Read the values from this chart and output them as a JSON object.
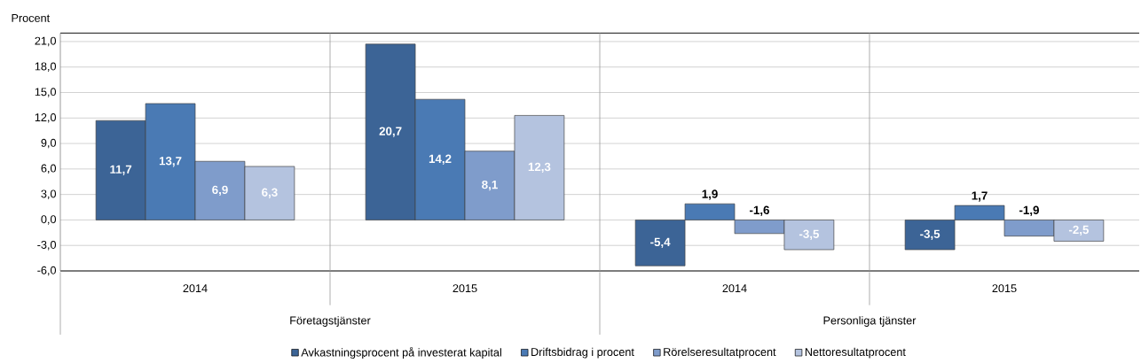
{
  "chart_data": {
    "type": "bar",
    "ylabel": "Procent",
    "categories": [
      "2014",
      "2015",
      "2014",
      "2015"
    ],
    "series": [
      {
        "name": "Avkastningsprocent på investerat kapital",
        "color": "#3c6496",
        "values": [
          11.7,
          20.7,
          -5.4,
          -3.5
        ],
        "value_labels": [
          "11,7",
          "20,7",
          "-5,4",
          "-3,5"
        ]
      },
      {
        "name": "Driftsbidrag i procent",
        "color": "#4a7ab4",
        "values": [
          13.7,
          14.2,
          1.9,
          1.7
        ],
        "value_labels": [
          "13,7",
          "14,2",
          "1,9",
          "1,7"
        ]
      },
      {
        "name": "Rörelseresultatprocent",
        "color": "#7f9ccb",
        "values": [
          6.9,
          8.1,
          -1.6,
          -1.9
        ],
        "value_labels": [
          "6,9",
          "8,1",
          "-1,6",
          "-1,9"
        ]
      },
      {
        "name": "Nettoresultatprocent",
        "color": "#b4c3df",
        "values": [
          6.3,
          12.3,
          -3.5,
          -2.5
        ],
        "value_labels": [
          "6,3",
          "12,3",
          "-3,5",
          "-2,5"
        ]
      }
    ],
    "ylim": [
      -6,
      22
    ],
    "yticks": [
      {
        "value": -6,
        "label": "-6,0"
      },
      {
        "value": -3,
        "label": "-3,0"
      },
      {
        "value": 0,
        "label": "0,0"
      },
      {
        "value": 3,
        "label": "3,0"
      },
      {
        "value": 6,
        "label": "6,0"
      },
      {
        "value": 9,
        "label": "9,0"
      },
      {
        "value": 12,
        "label": "12,0"
      },
      {
        "value": 15,
        "label": "15,0"
      },
      {
        "value": 18,
        "label": "18,0"
      },
      {
        "value": 21,
        "label": "21,0"
      }
    ],
    "grid": "y",
    "legend": "bottom",
    "annotations": [
      "Företagstjänster",
      "Personliga tjänster"
    ]
  }
}
